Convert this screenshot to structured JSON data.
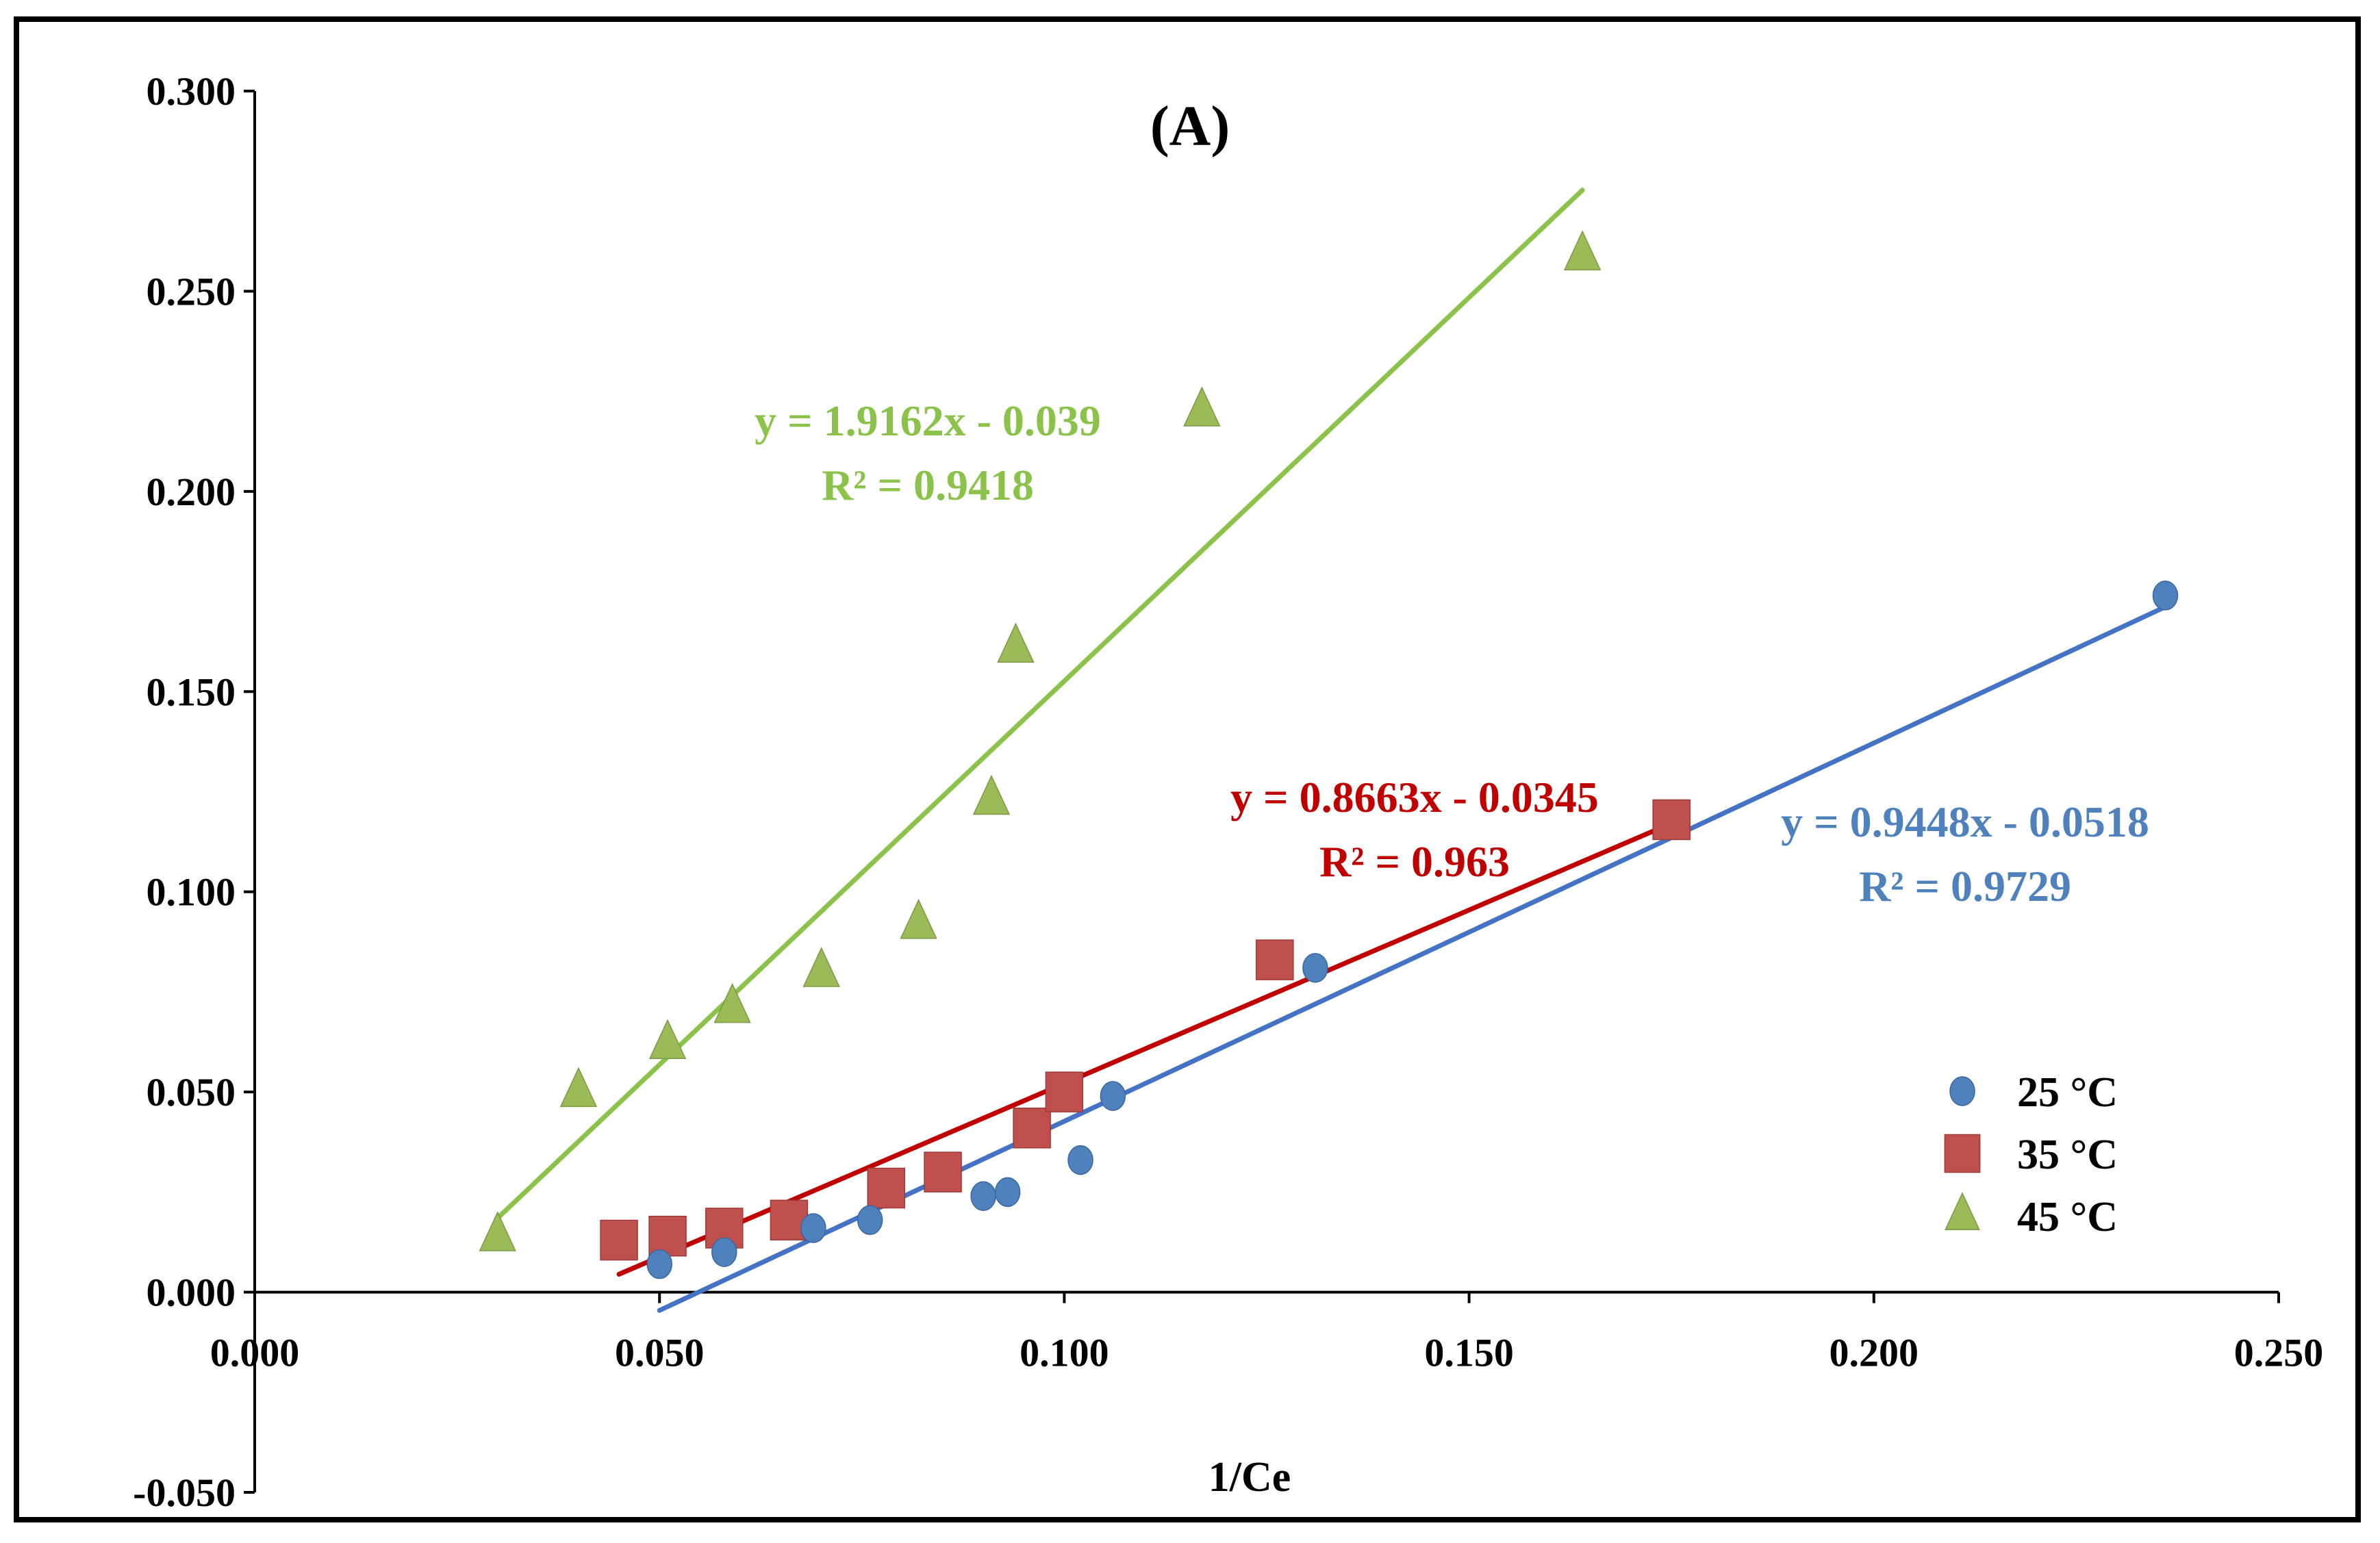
{
  "chart_data": {
    "type": "scatter",
    "title": "(A)",
    "xlabel": "1/Ce",
    "ylabel": "",
    "xlim": [
      0,
      0.25
    ],
    "ylim": [
      -0.05,
      0.3
    ],
    "x_ticks": [
      "0.000",
      "0.050",
      "0.100",
      "0.150",
      "0.200",
      "0.250"
    ],
    "y_ticks": [
      "-0.050",
      "0.000",
      "0.050",
      "0.100",
      "0.150",
      "0.200",
      "0.250",
      "0.300"
    ],
    "grid": false,
    "legend_position": "bottom-right",
    "series": [
      {
        "name": "25 °C",
        "marker": "circle",
        "color": "#4F81BD",
        "points": [
          [
            0.05,
            0.007
          ],
          [
            0.058,
            0.01
          ],
          [
            0.069,
            0.016
          ],
          [
            0.076,
            0.018
          ],
          [
            0.09,
            0.024
          ],
          [
            0.093,
            0.025
          ],
          [
            0.102,
            0.033
          ],
          [
            0.106,
            0.049
          ],
          [
            0.131,
            0.081
          ],
          [
            0.236,
            0.174
          ]
        ],
        "trendline": {
          "slope": 0.9448,
          "intercept": -0.0518,
          "x_range": [
            0.05,
            0.236
          ],
          "color": "#4472C4",
          "equation": "y = 0.9448x - 0.0518",
          "r2": "R² = 0.9729",
          "label_color": "#4F81BD"
        }
      },
      {
        "name": "35 °C",
        "marker": "square",
        "color": "#C0504D",
        "points": [
          [
            0.045,
            0.013
          ],
          [
            0.051,
            0.014
          ],
          [
            0.058,
            0.016
          ],
          [
            0.066,
            0.018
          ],
          [
            0.078,
            0.026
          ],
          [
            0.085,
            0.03
          ],
          [
            0.096,
            0.041
          ],
          [
            0.1,
            0.05
          ],
          [
            0.126,
            0.083
          ],
          [
            0.175,
            0.118
          ]
        ],
        "trendline": {
          "slope": 0.8663,
          "intercept": -0.0345,
          "x_range": [
            0.045,
            0.175
          ],
          "color": "#C00000",
          "equation": "y = 0.8663x - 0.0345",
          "r2": "R² = 0.963",
          "label_color": "#C00000"
        }
      },
      {
        "name": "45 °C",
        "marker": "triangle",
        "color": "#9BBB59",
        "points": [
          [
            0.03,
            0.014
          ],
          [
            0.04,
            0.05
          ],
          [
            0.051,
            0.062
          ],
          [
            0.059,
            0.071
          ],
          [
            0.07,
            0.08
          ],
          [
            0.082,
            0.092
          ],
          [
            0.091,
            0.123
          ],
          [
            0.094,
            0.161
          ],
          [
            0.117,
            0.22
          ],
          [
            0.164,
            0.259
          ]
        ],
        "trendline": {
          "slope": 1.9162,
          "intercept": -0.039,
          "x_range": [
            0.03,
            0.164
          ],
          "color": "#8BC34A",
          "equation": "y = 1.9162x - 0.039",
          "r2": "R² = 0.9418",
          "label_color": "#8BC34A"
        }
      }
    ]
  }
}
